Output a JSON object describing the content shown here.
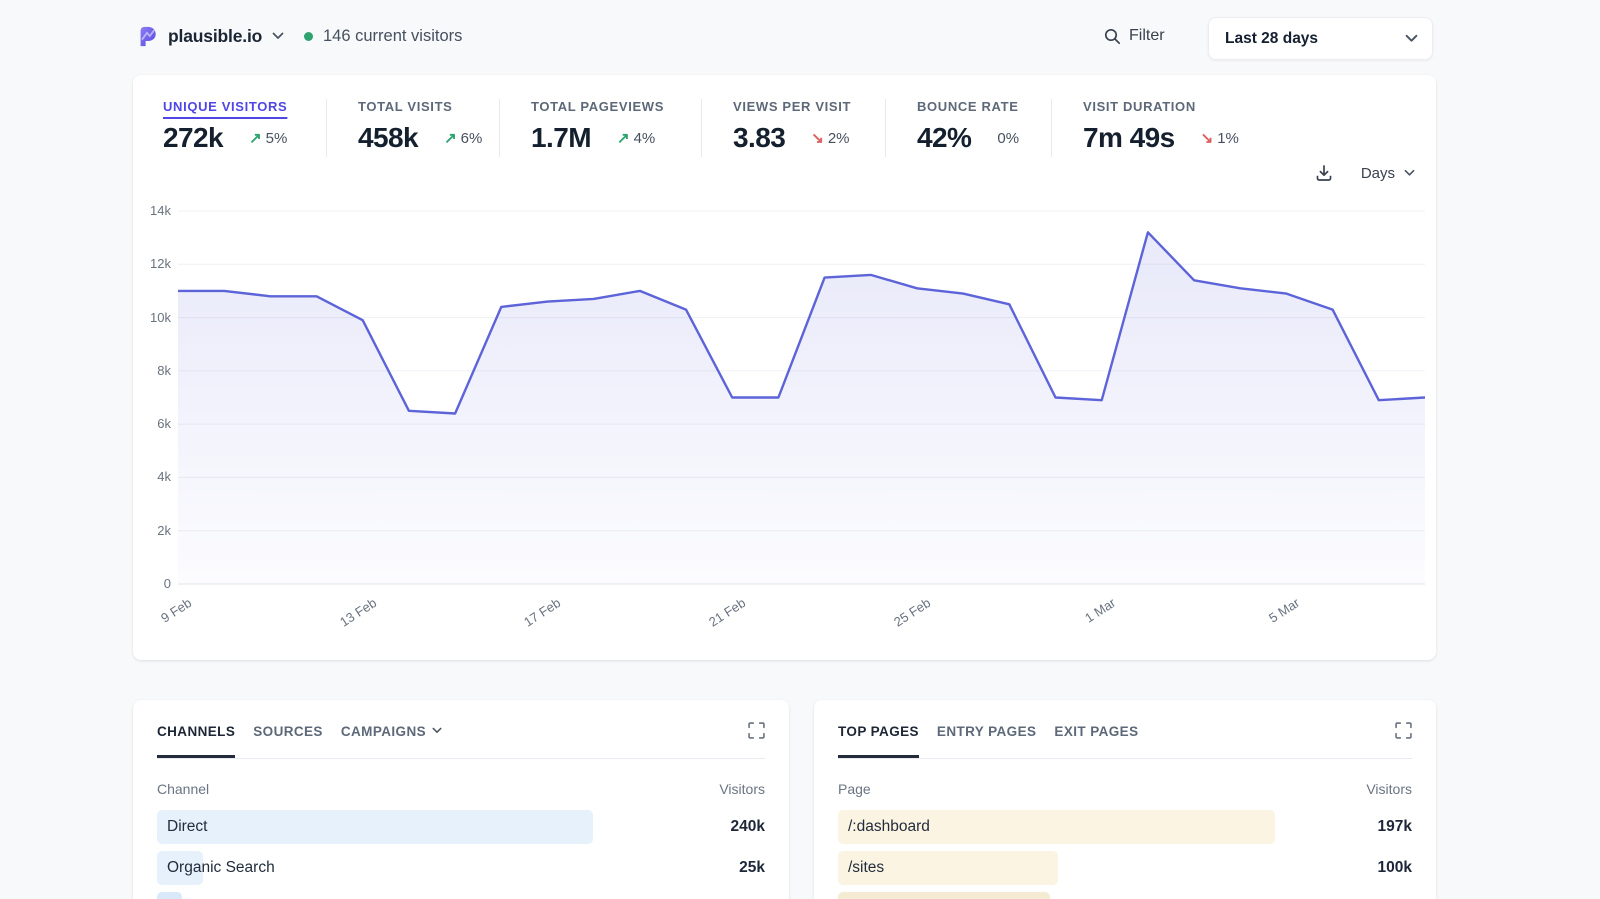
{
  "header": {
    "site": "plausible.io",
    "current_visitors": "146 current visitors",
    "filter_label": "Filter",
    "date_range": "Last 28 days"
  },
  "stats": [
    {
      "label": "UNIQUE VISITORS",
      "value": "272k",
      "change": "5%",
      "direction": "up",
      "active": true
    },
    {
      "label": "TOTAL VISITS",
      "value": "458k",
      "change": "6%",
      "direction": "up"
    },
    {
      "label": "TOTAL PAGEVIEWS",
      "value": "1.7M",
      "change": "4%",
      "direction": "up"
    },
    {
      "label": "VIEWS PER VISIT",
      "value": "3.83",
      "change": "2%",
      "direction": "down"
    },
    {
      "label": "BOUNCE RATE",
      "value": "42%",
      "change": "0%",
      "direction": "flat"
    },
    {
      "label": "VISIT DURATION",
      "value": "7m 49s",
      "change": "1%",
      "direction": "down"
    }
  ],
  "chart_toolbar": {
    "interval_label": "Days"
  },
  "chart_data": {
    "type": "area",
    "metric": "UNIQUE VISITORS",
    "x": [
      "9 Feb",
      "10 Feb",
      "11 Feb",
      "12 Feb",
      "13 Feb",
      "14 Feb",
      "15 Feb",
      "16 Feb",
      "17 Feb",
      "18 Feb",
      "19 Feb",
      "20 Feb",
      "21 Feb",
      "22 Feb",
      "23 Feb",
      "24 Feb",
      "25 Feb",
      "26 Feb",
      "27 Feb",
      "28 Feb",
      "1 Mar",
      "2 Mar",
      "3 Mar",
      "4 Mar",
      "5 Mar",
      "6 Mar",
      "7 Mar",
      "8 Mar"
    ],
    "values": [
      11000,
      11000,
      10800,
      10800,
      9900,
      6500,
      6400,
      10400,
      10600,
      10700,
      11000,
      10300,
      7000,
      7000,
      11500,
      11600,
      11100,
      10900,
      10500,
      7000,
      6900,
      13200,
      11400,
      11100,
      10900,
      10300,
      6900,
      7000
    ],
    "ylim": [
      0,
      14000
    ],
    "yticks": [
      "0",
      "2k",
      "4k",
      "6k",
      "8k",
      "10k",
      "12k",
      "14k"
    ],
    "xticks": [
      "9 Feb",
      "13 Feb",
      "17 Feb",
      "21 Feb",
      "25 Feb",
      "1 Mar",
      "5 Mar"
    ],
    "grid": true,
    "legend": false,
    "line_color": "#5d63d8",
    "fill_top": "rgba(93,99,216,0.14)",
    "fill_bottom": "rgba(93,99,216,0.02)",
    "grid_color": "#eef1f5",
    "baseline_color": "#e2e6eb"
  },
  "panels": {
    "left": {
      "tabs": [
        {
          "label": "CHANNELS",
          "active": true
        },
        {
          "label": "SOURCES"
        },
        {
          "label": "CAMPAIGNS",
          "chevron": true
        }
      ],
      "columns": [
        "Channel",
        "Visitors"
      ],
      "rows": [
        {
          "label": "Direct",
          "value": "240k",
          "bar_pct": 71.7
        },
        {
          "label": "Organic Search",
          "value": "25k",
          "bar_pct": 7.6
        }
      ],
      "partial_row": {
        "bar_pct": 4.1,
        "color": "#d9e9fa"
      },
      "bar_color": "#e7f1fc"
    },
    "right": {
      "tabs": [
        {
          "label": "TOP PAGES",
          "active": true
        },
        {
          "label": "ENTRY PAGES"
        },
        {
          "label": "EXIT PAGES"
        }
      ],
      "columns": [
        "Page",
        "Visitors"
      ],
      "rows": [
        {
          "label": "/:dashboard",
          "value": "197k",
          "bar_pct": 76.1
        },
        {
          "label": "/sites",
          "value": "100k",
          "bar_pct": 38.3
        }
      ],
      "partial_row": {
        "bar_pct": 37.0,
        "color": "#f5ebd2"
      },
      "bar_color": "#fbf4e2"
    }
  }
}
